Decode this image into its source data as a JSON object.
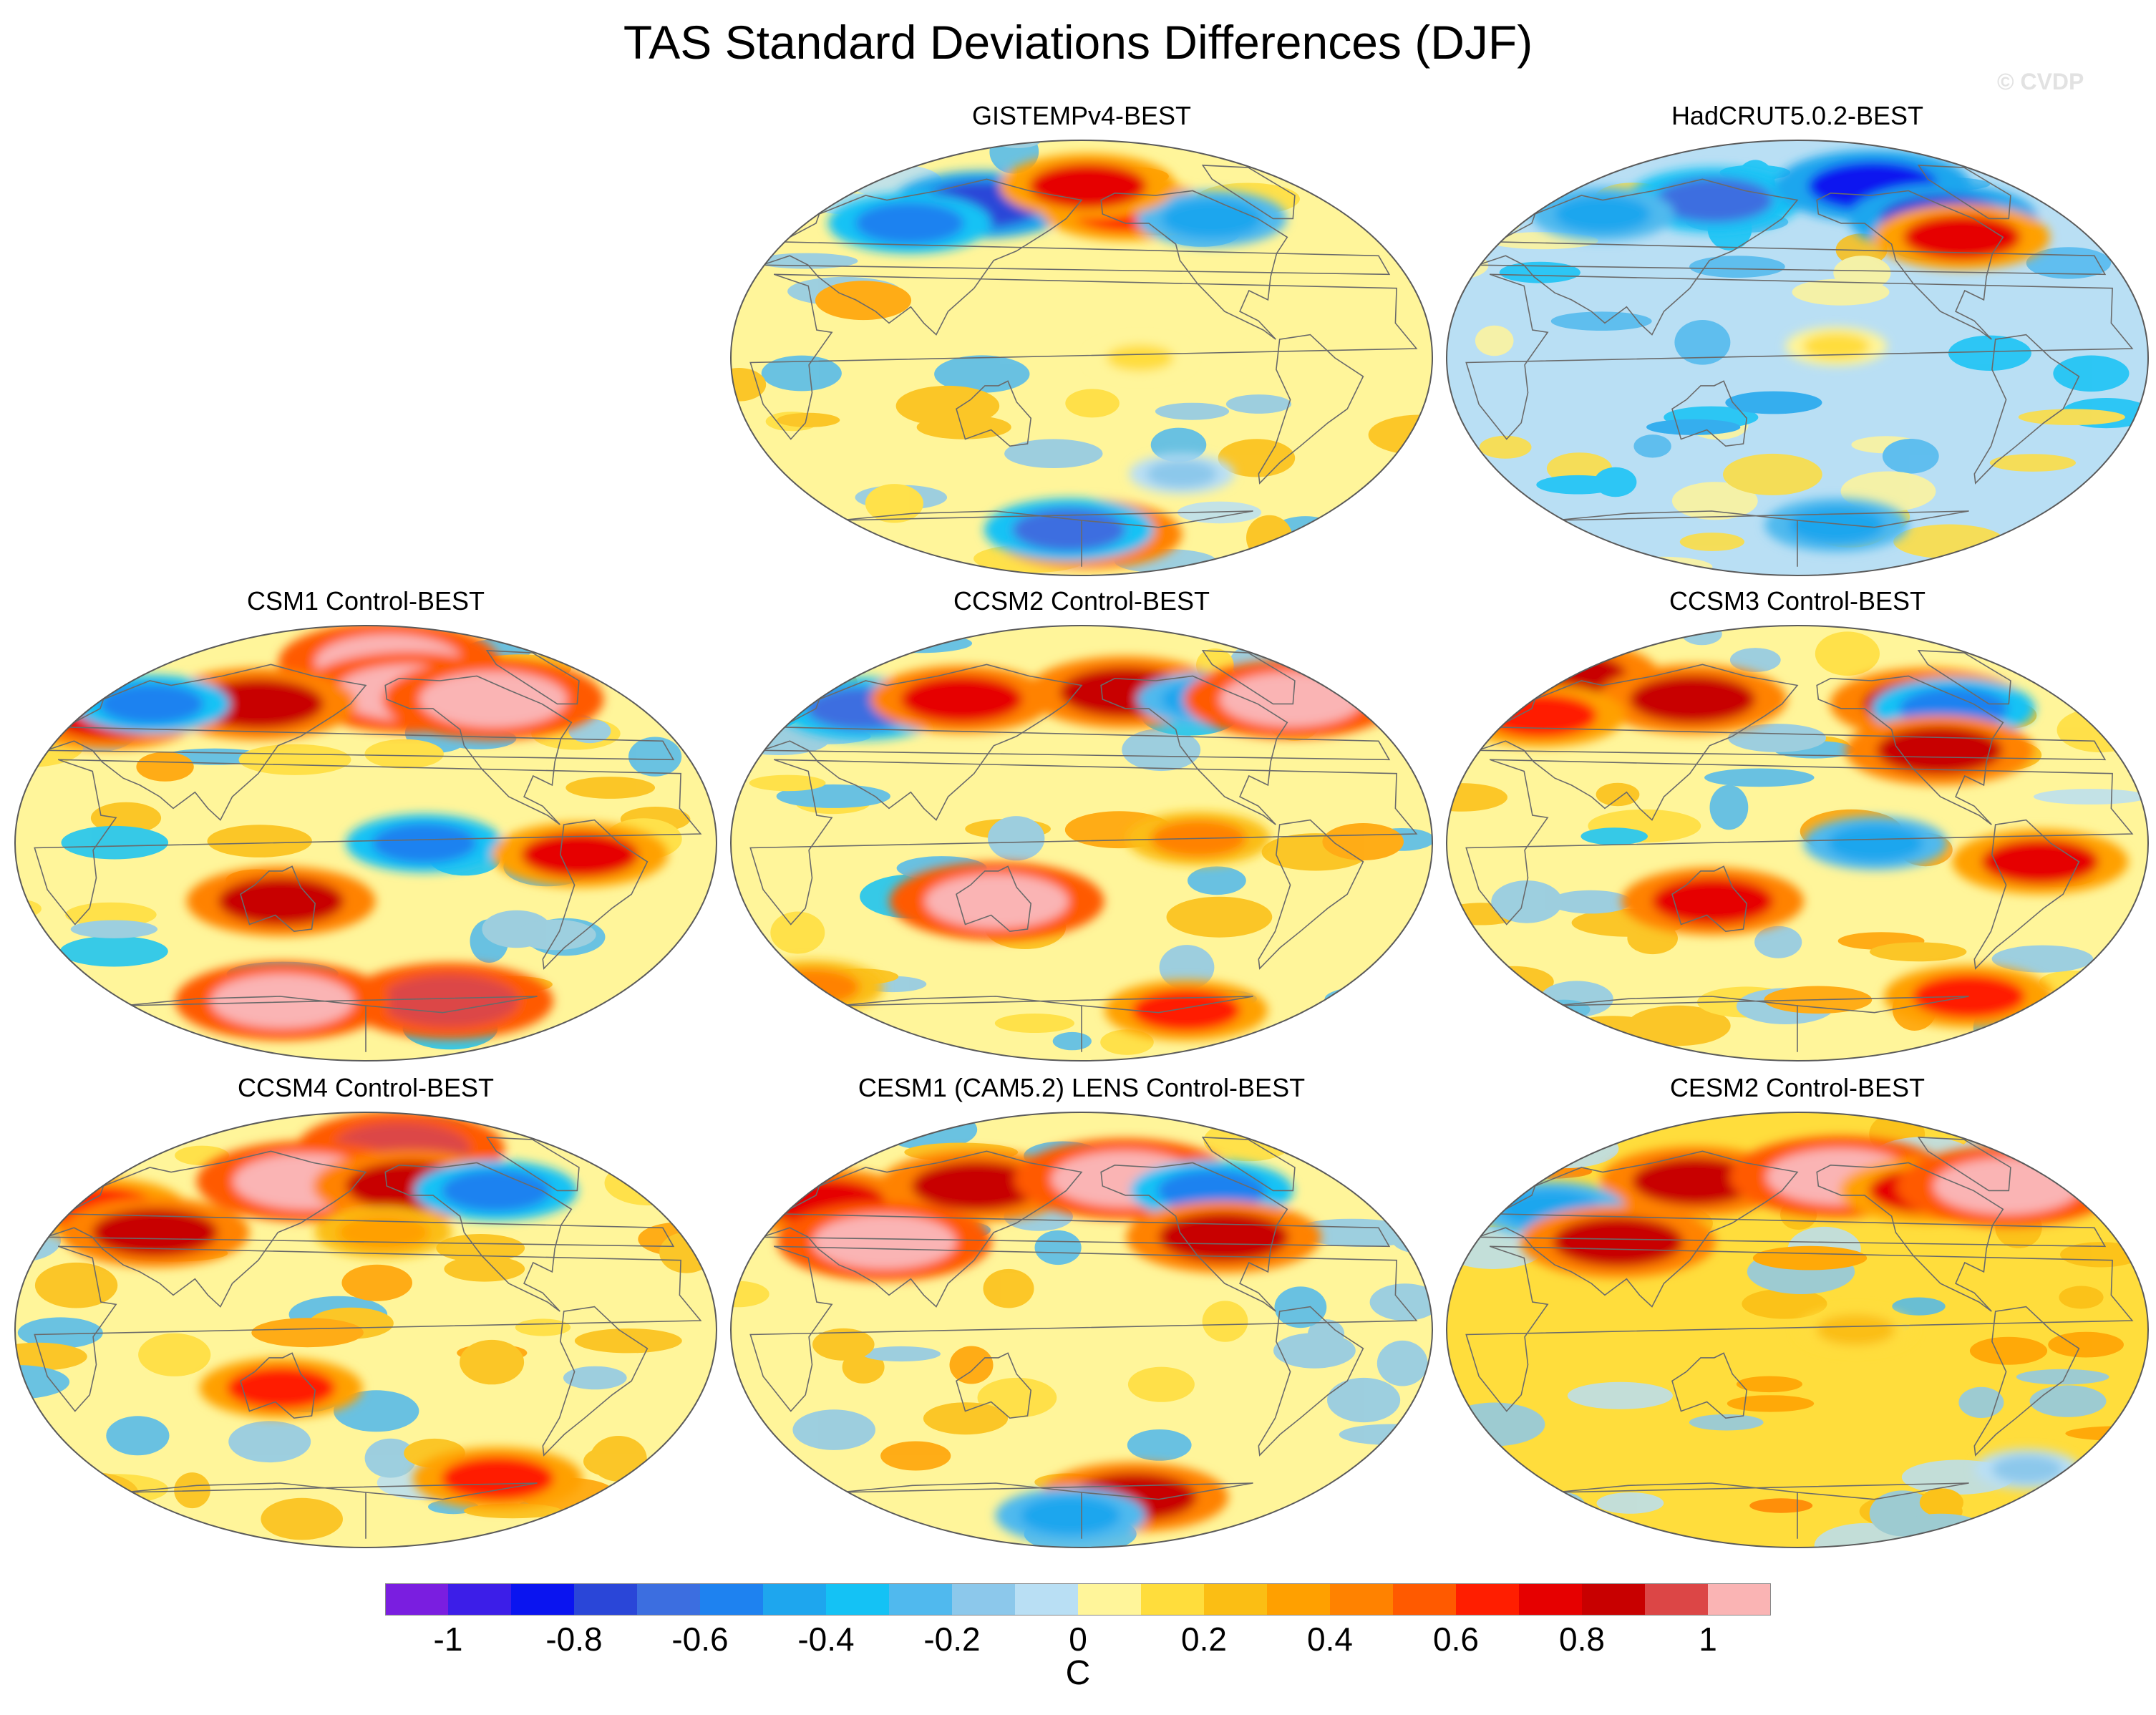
{
  "title": "TAS Standard Deviations Differences (DJF)",
  "watermark": "© CVDP",
  "colors": {
    "levels": [
      "#7a1ee0",
      "#3c1ee8",
      "#0a14f0",
      "#2a46d8",
      "#3c6ee0",
      "#1e82f0",
      "#1ea6ee",
      "#14c2f5",
      "#50b9ee",
      "#8cc8eb",
      "#b9dff4",
      "#fff59a",
      "#ffdd3c",
      "#fbbe14",
      "#ffa000",
      "#ff8200",
      "#ff5a00",
      "#ff1e00",
      "#e60000",
      "#c80000",
      "#dc4646",
      "#fab4b4"
    ],
    "continent_line": "#6a6a6a",
    "map_outline": "#5a5a5a"
  },
  "chart_data": {
    "type": "heatmap",
    "projection": "Robinson-like global map, Pacific-centered",
    "units": "C",
    "colorbar": {
      "ticks": [
        "-1",
        "-0.8",
        "-0.6",
        "-0.4",
        "-0.2",
        "0",
        "0.2",
        "0.4",
        "0.6",
        "0.8",
        "1"
      ],
      "tick_values": [
        -1,
        -0.8,
        -0.6,
        -0.4,
        -0.2,
        0,
        0.2,
        0.4,
        0.6,
        0.8,
        1
      ],
      "range": [
        -1.1,
        1.1
      ],
      "n_boxes": 22,
      "label": "C"
    },
    "panels": [
      {
        "id": "gistemp",
        "title": "GISTEMPv4-BEST",
        "col": 1,
        "row": 0,
        "base": 0.05,
        "features": [
          {
            "region": "Siberia",
            "lon": 110,
            "lat": 66,
            "value": -0.75
          },
          {
            "region": "Central Asia",
            "lon": 70,
            "lat": 58,
            "value": -0.6
          },
          {
            "region": "Alaska",
            "lon": -150,
            "lat": 64,
            "value": 0.65
          },
          {
            "region": "Canada",
            "lon": -95,
            "lat": 60,
            "value": -0.5
          },
          {
            "region": "Arctic Pacific",
            "lon": -175,
            "lat": 74,
            "value": 0.7
          },
          {
            "region": "Tropical Pacific",
            "lon": -150,
            "lat": 0,
            "value": 0.12
          },
          {
            "region": "Southern Ocean",
            "lon": -120,
            "lat": -50,
            "value": -0.15
          },
          {
            "region": "Antarctic",
            "lon": -175,
            "lat": -76,
            "value": 0.8
          },
          {
            "region": "Antarctic",
            "lon": 170,
            "lat": -74,
            "value": -0.65
          }
        ]
      },
      {
        "id": "hadcrut",
        "title": "HadCRUT5.0.2-BEST",
        "col": 2,
        "row": 0,
        "base": -0.08,
        "features": [
          {
            "region": "Siberia",
            "lon": 120,
            "lat": 68,
            "value": -0.7
          },
          {
            "region": "Arctic",
            "lon": -120,
            "lat": 74,
            "value": -0.85
          },
          {
            "region": "Canada",
            "lon": -85,
            "lat": 60,
            "value": -0.8
          },
          {
            "region": "Hudson Bay",
            "lon": -80,
            "lat": 52,
            "value": 0.7
          },
          {
            "region": "Eurasia",
            "lon": 50,
            "lat": 62,
            "value": -0.45
          },
          {
            "region": "Tropical Pacific",
            "lon": -160,
            "lat": 5,
            "value": 0.12
          },
          {
            "region": "Antarctic",
            "lon": -150,
            "lat": -72,
            "value": -0.45
          }
        ]
      },
      {
        "id": "csm1",
        "title": "CSM1 Control-BEST",
        "col": 0,
        "row": 1,
        "base": 0.02,
        "features": [
          {
            "region": "Arctic",
            "lon": -160,
            "lat": 78,
            "value": 1.05
          },
          {
            "region": "Alaska",
            "lon": -150,
            "lat": 65,
            "value": 1.05
          },
          {
            "region": "Canada",
            "lon": -95,
            "lat": 62,
            "value": 1.05
          },
          {
            "region": "Europe",
            "lon": 20,
            "lat": 55,
            "value": 0.75
          },
          {
            "region": "Siberia",
            "lon": 110,
            "lat": 60,
            "value": 0.85
          },
          {
            "region": "Central Asia",
            "lon": 40,
            "lat": 60,
            "value": -0.55
          },
          {
            "region": "Equatorial Pacific",
            "lon": -150,
            "lat": 0,
            "value": -0.55
          },
          {
            "region": "Australia",
            "lon": 135,
            "lat": -25,
            "value": 0.8
          },
          {
            "region": "Andes",
            "lon": -70,
            "lat": -5,
            "value": 0.7
          },
          {
            "region": "Southern Ocean",
            "lon": -120,
            "lat": -68,
            "value": 0.95
          },
          {
            "region": "Southern Ocean",
            "lon": 120,
            "lat": -68,
            "value": 1.0
          }
        ]
      },
      {
        "id": "ccsm2",
        "title": "CCSM2 Control-BEST",
        "col": 1,
        "row": 1,
        "base": 0.03,
        "features": [
          {
            "region": "Eurasia",
            "lon": 40,
            "lat": 58,
            "value": -0.65
          },
          {
            "region": "Siberia",
            "lon": 100,
            "lat": 62,
            "value": 0.75
          },
          {
            "region": "Alaska",
            "lon": -150,
            "lat": 65,
            "value": 0.85
          },
          {
            "region": "Canada",
            "lon": -95,
            "lat": 62,
            "value": -0.45
          },
          {
            "region": "North Atlantic",
            "lon": -40,
            "lat": 62,
            "value": 1.0
          },
          {
            "region": "Australia",
            "lon": 135,
            "lat": -25,
            "value": 1.0
          },
          {
            "region": "Equatorial Pacific",
            "lon": -120,
            "lat": 2,
            "value": 0.45
          },
          {
            "region": "Southern Ocean",
            "lon": 0,
            "lat": -62,
            "value": 0.45
          },
          {
            "region": "Antarctic Coast",
            "lon": -100,
            "lat": -72,
            "value": 0.6
          }
        ]
      },
      {
        "id": "ccsm3",
        "title": "CCSM3 Control-BEST",
        "col": 2,
        "row": 1,
        "base": 0.05,
        "features": [
          {
            "region": "Arctic",
            "lon": 0,
            "lat": 72,
            "value": 0.85
          },
          {
            "region": "Siberia",
            "lon": 110,
            "lat": 62,
            "value": 0.8
          },
          {
            "region": "Europe",
            "lon": 20,
            "lat": 55,
            "value": 0.65
          },
          {
            "region": "Canada",
            "lon": -95,
            "lat": 60,
            "value": 0.85
          },
          {
            "region": "Hudson Bay",
            "lon": -80,
            "lat": 58,
            "value": -0.6
          },
          {
            "region": "North America",
            "lon": -100,
            "lat": 40,
            "value": 0.8
          },
          {
            "region": "Equatorial Pacific",
            "lon": -140,
            "lat": 0,
            "value": -0.45
          },
          {
            "region": "Australia",
            "lon": 135,
            "lat": -25,
            "value": 0.75
          },
          {
            "region": "Amazon",
            "lon": -55,
            "lat": -8,
            "value": 0.7
          },
          {
            "region": "Southern Ocean",
            "lon": -60,
            "lat": -66,
            "value": 0.65
          }
        ]
      },
      {
        "id": "ccsm4",
        "title": "CCSM4 Control-BEST",
        "col": 0,
        "row": 2,
        "base": 0.05,
        "features": [
          {
            "region": "Arctic",
            "lon": -150,
            "lat": 78,
            "value": 0.95
          },
          {
            "region": "Siberia",
            "lon": 140,
            "lat": 64,
            "value": 1.05
          },
          {
            "region": "Alaska",
            "lon": -150,
            "lat": 62,
            "value": 0.85
          },
          {
            "region": "Canada",
            "lon": -95,
            "lat": 60,
            "value": -0.6
          },
          {
            "region": "Europe",
            "lon": 20,
            "lat": 52,
            "value": 0.65
          },
          {
            "region": "Central Asia",
            "lon": 60,
            "lat": 42,
            "value": 0.8
          },
          {
            "region": "North Pacific",
            "lon": -170,
            "lat": 42,
            "value": 0.4
          },
          {
            "region": "Australia",
            "lon": 135,
            "lat": -25,
            "value": 0.6
          },
          {
            "region": "Southern Ocean",
            "lon": -90,
            "lat": -64,
            "value": 0.65
          }
        ]
      },
      {
        "id": "cesm1",
        "title": "CESM1 (CAM5.2) LENS Control-BEST",
        "col": 1,
        "row": 2,
        "base": 0.05,
        "features": [
          {
            "region": "Europe",
            "lon": 20,
            "lat": 55,
            "value": 0.75
          },
          {
            "region": "Siberia",
            "lon": 110,
            "lat": 62,
            "value": 0.85
          },
          {
            "region": "Alaska",
            "lon": -150,
            "lat": 65,
            "value": 1.05
          },
          {
            "region": "Canada",
            "lon": -95,
            "lat": 60,
            "value": -0.6
          },
          {
            "region": "North America",
            "lon": -100,
            "lat": 40,
            "value": 0.85
          },
          {
            "region": "Central Asia",
            "lon": 70,
            "lat": 38,
            "value": 1.0
          },
          {
            "region": "Antarctic Coast",
            "lon": -140,
            "lat": -72,
            "value": 0.8
          },
          {
            "region": "Antarctic",
            "lon": 170,
            "lat": -80,
            "value": -0.5
          }
        ]
      },
      {
        "id": "cesm2",
        "title": "CESM2 Control-BEST",
        "col": 2,
        "row": 2,
        "base": 0.12,
        "features": [
          {
            "region": "Siberia",
            "lon": 110,
            "lat": 64,
            "value": 0.8
          },
          {
            "region": "Alaska",
            "lon": -150,
            "lat": 66,
            "value": 1.05
          },
          {
            "region": "Canada",
            "lon": -95,
            "lat": 60,
            "value": 0.7
          },
          {
            "region": "Europe",
            "lon": 30,
            "lat": 52,
            "value": -0.5
          },
          {
            "region": "Central Asia",
            "lon": 80,
            "lat": 38,
            "value": 0.85
          },
          {
            "region": "North Atlantic",
            "lon": -40,
            "lat": 62,
            "value": 1.05
          },
          {
            "region": "Tropical Pacific",
            "lon": -150,
            "lat": 0,
            "value": 0.25
          },
          {
            "region": "Southern Ocean",
            "lon": -30,
            "lat": -60,
            "value": -0.15
          }
        ]
      }
    ]
  }
}
